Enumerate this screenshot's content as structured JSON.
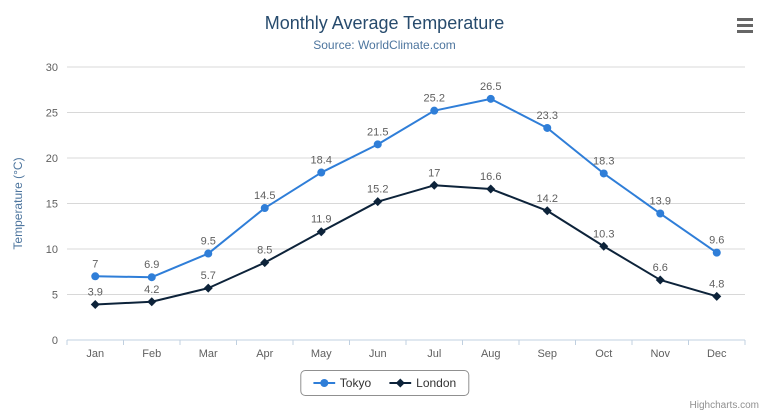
{
  "header": {
    "title": "Monthly Average Temperature",
    "subtitle": "Source: WorldClimate.com"
  },
  "credits": "Highcharts.com",
  "colors": {
    "tokyo_series": "#2f7ed8",
    "london_series": "#0d233a",
    "title_text": "#274b6d",
    "subtitle_text": "#4d759e",
    "axis_label": "#606060",
    "gridline": "#d8d8d8",
    "axis_line": "#c0d0e0",
    "legend_border": "#909090"
  },
  "chart_data": {
    "type": "line",
    "title": "Monthly Average Temperature",
    "subtitle": "Source: WorldClimate.com",
    "categories": [
      "Jan",
      "Feb",
      "Mar",
      "Apr",
      "May",
      "Jun",
      "Jul",
      "Aug",
      "Sep",
      "Oct",
      "Nov",
      "Dec"
    ],
    "series": [
      {
        "name": "Tokyo",
        "color": "#2f7ed8",
        "marker": "circle",
        "values": [
          7,
          6.9,
          9.5,
          14.5,
          18.4,
          21.5,
          25.2,
          26.5,
          23.3,
          18.3,
          13.9,
          9.6
        ]
      },
      {
        "name": "London",
        "color": "#0d233a",
        "marker": "diamond",
        "values": [
          3.9,
          4.2,
          5.7,
          8.5,
          11.9,
          15.2,
          17,
          16.6,
          14.2,
          10.3,
          6.6,
          4.8
        ]
      }
    ],
    "xlabel": "",
    "ylabel": "Temperature (°C)",
    "ylim": [
      0,
      30
    ],
    "ytick_interval": 5,
    "grid": true,
    "data_labels": true,
    "legend_position": "bottom"
  }
}
